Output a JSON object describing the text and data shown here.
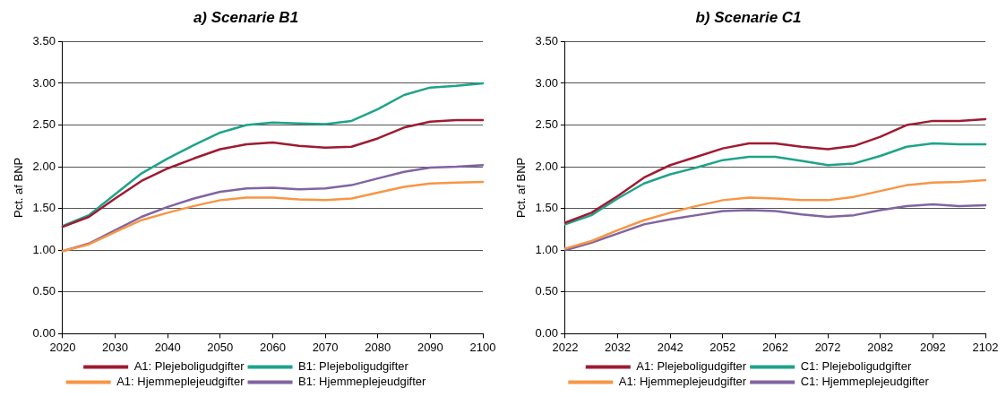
{
  "chart_data": [
    {
      "type": "line",
      "title": "a) Scenarie B1",
      "ylabel": "Pct. af BNP",
      "x": [
        2020,
        2025,
        2030,
        2035,
        2040,
        2045,
        2050,
        2055,
        2060,
        2065,
        2070,
        2075,
        2080,
        2085,
        2090,
        2095,
        2100
      ],
      "xlim": [
        2020,
        2100
      ],
      "xticks": [
        2020,
        2030,
        2040,
        2050,
        2060,
        2070,
        2080,
        2090,
        2100
      ],
      "ylim": [
        0,
        3.5
      ],
      "yticks": [
        {
          "value": 0,
          "label": "0.00"
        },
        {
          "value": 0.5,
          "label": "0.50"
        },
        {
          "value": 1,
          "label": "1.00"
        },
        {
          "value": 1.5,
          "label": "1.50"
        },
        {
          "value": 2,
          "label": "2.00"
        },
        {
          "value": 2.5,
          "label": "2.50"
        },
        {
          "value": 3,
          "label": "3.00"
        },
        {
          "value": 3.5,
          "label": "3.50"
        }
      ],
      "grid": "y",
      "legend": "bottom",
      "marker": "none",
      "line_style": "solid",
      "series": [
        {
          "name": "A1: Plejeboligudgifter",
          "color": "#9e1b32",
          "values": [
            1.28,
            1.4,
            1.62,
            1.83,
            1.98,
            2.1,
            2.21,
            2.27,
            2.29,
            2.25,
            2.23,
            2.24,
            2.34,
            2.47,
            2.54,
            2.56,
            2.56
          ]
        },
        {
          "name": "B1: Plejeboligudgifter",
          "color": "#1fa38a",
          "values": [
            1.29,
            1.42,
            1.67,
            1.92,
            2.1,
            2.26,
            2.41,
            2.5,
            2.53,
            2.52,
            2.51,
            2.55,
            2.69,
            2.86,
            2.95,
            2.97,
            3.0
          ]
        },
        {
          "name": "A1: Hjemmeplejeudgifter",
          "color": "#f79646",
          "values": [
            0.99,
            1.07,
            1.22,
            1.36,
            1.45,
            1.53,
            1.6,
            1.63,
            1.63,
            1.61,
            1.6,
            1.62,
            1.69,
            1.76,
            1.8,
            1.81,
            1.82
          ]
        },
        {
          "name": "B1: Hjemmeplejeudgifter",
          "color": "#8064a2",
          "values": [
            0.99,
            1.08,
            1.24,
            1.4,
            1.52,
            1.62,
            1.7,
            1.74,
            1.75,
            1.73,
            1.74,
            1.78,
            1.86,
            1.94,
            1.99,
            2.0,
            2.02
          ]
        }
      ]
    },
    {
      "type": "line",
      "title": "b) Scenarie C1",
      "ylabel": "Pct. af BNP",
      "x": [
        2022,
        2027,
        2032,
        2037,
        2042,
        2047,
        2052,
        2057,
        2062,
        2067,
        2072,
        2077,
        2082,
        2087,
        2092,
        2097,
        2102
      ],
      "xlim": [
        2022,
        2102
      ],
      "xticks": [
        2022,
        2032,
        2042,
        2052,
        2062,
        2072,
        2082,
        2092,
        2102
      ],
      "ylim": [
        0,
        3.5
      ],
      "yticks": [
        {
          "value": 0,
          "label": "0.00"
        },
        {
          "value": 0.5,
          "label": "0.50"
        },
        {
          "value": 1,
          "label": "1.00"
        },
        {
          "value": 1.5,
          "label": "1.50"
        },
        {
          "value": 2,
          "label": "2.00"
        },
        {
          "value": 2.5,
          "label": "2.50"
        },
        {
          "value": 3,
          "label": "3.00"
        },
        {
          "value": 3.5,
          "label": "3.50"
        }
      ],
      "grid": "y",
      "legend": "bottom",
      "marker": "none",
      "line_style": "solid",
      "series": [
        {
          "name": "A1: Plejeboligudgifter",
          "color": "#9e1b32",
          "values": [
            1.33,
            1.45,
            1.65,
            1.87,
            2.02,
            2.12,
            2.22,
            2.28,
            2.28,
            2.24,
            2.21,
            2.25,
            2.36,
            2.5,
            2.55,
            2.55,
            2.57
          ]
        },
        {
          "name": "C1: Plejeboligudgifter",
          "color": "#1fa38a",
          "values": [
            1.31,
            1.42,
            1.62,
            1.8,
            1.91,
            1.99,
            2.08,
            2.12,
            2.12,
            2.07,
            2.02,
            2.04,
            2.13,
            2.24,
            2.28,
            2.27,
            2.27
          ]
        },
        {
          "name": "A1: Hjemmeplejeudgifter",
          "color": "#f79646",
          "values": [
            1.02,
            1.11,
            1.24,
            1.36,
            1.45,
            1.53,
            1.6,
            1.63,
            1.62,
            1.6,
            1.6,
            1.64,
            1.71,
            1.78,
            1.81,
            1.82,
            1.84
          ]
        },
        {
          "name": "C1: Hjemmeplejeudgifter",
          "color": "#8064a2",
          "values": [
            1.0,
            1.09,
            1.2,
            1.31,
            1.37,
            1.42,
            1.47,
            1.48,
            1.47,
            1.43,
            1.4,
            1.42,
            1.48,
            1.53,
            1.55,
            1.53,
            1.54
          ]
        }
      ]
    }
  ]
}
